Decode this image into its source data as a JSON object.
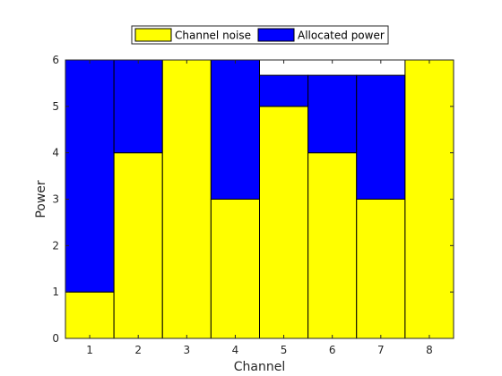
{
  "chart_data": {
    "type": "bar",
    "stacked": true,
    "categories": [
      "1",
      "2",
      "3",
      "4",
      "5",
      "6",
      "7",
      "8"
    ],
    "series": [
      {
        "name": "Channel noise",
        "values": [
          1,
          4,
          6,
          3,
          5,
          4,
          3,
          6
        ],
        "color": "#ffff00"
      },
      {
        "name": "Allocated power",
        "values": [
          5,
          2,
          0,
          3,
          0.67,
          1.67,
          2.67,
          0
        ],
        "color": "#0000ff"
      }
    ],
    "xlabel": "Channel",
    "ylabel": "Power",
    "ylim": [
      0,
      6
    ],
    "yticks": [
      "0",
      "1",
      "2",
      "3",
      "4",
      "5",
      "6"
    ],
    "grid": false,
    "legend_position": "top-center, horizontal"
  }
}
